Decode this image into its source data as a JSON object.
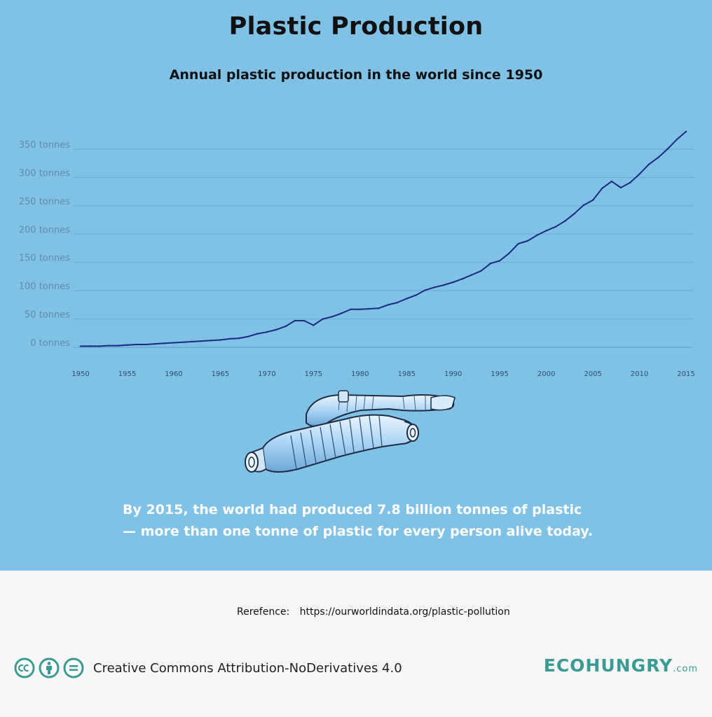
{
  "title": "Plastic Production",
  "subtitle": "Annual plastic production in the world since 1950",
  "caption": {
    "line1": "By 2015, the world had produced 7.8 billion tonnes of plastic",
    "line2": "— more than one tonne of plastic for every person alive today."
  },
  "reference": {
    "label": "Rerefence:",
    "url": "https://ourworldindata.org/plastic-pollution"
  },
  "license": {
    "text": "Creative Commons Attribution-NoDerivatives 4.0",
    "icons": [
      "cc-icon",
      "by-person-icon",
      "nd-equals-icon"
    ]
  },
  "brand": {
    "name": "ECOHUNGRY",
    "suffix": ".com"
  },
  "colors": {
    "background": "#80c1e6",
    "line": "#1a2a86",
    "brand": "#3a9a94",
    "footer": "#f7f7f7"
  },
  "chart_data": {
    "type": "line",
    "title": "Plastic Production",
    "subtitle": "Annual plastic production in the world since 1950",
    "xlabel": "",
    "ylabel": "",
    "ylim": [
      0,
      350
    ],
    "xlim": [
      1950,
      2015
    ],
    "grid": "horizontal",
    "yticks": [
      {
        "value": 0,
        "label": "0 tonnes"
      },
      {
        "value": 50,
        "label": "50 tonnes"
      },
      {
        "value": 100,
        "label": "100 tonnes"
      },
      {
        "value": 150,
        "label": "150 tonnes"
      },
      {
        "value": 200,
        "label": "200 tonnes"
      },
      {
        "value": 250,
        "label": "250 tonnes"
      },
      {
        "value": 300,
        "label": "300 tonnes"
      },
      {
        "value": 350,
        "label": "350 tonnes"
      }
    ],
    "xticks": [
      {
        "value": 1950,
        "label": "1950"
      },
      {
        "value": 1955,
        "label": "1955"
      },
      {
        "value": 1960,
        "label": "1960"
      },
      {
        "value": 1965,
        "label": "1965"
      },
      {
        "value": 1970,
        "label": "1970"
      },
      {
        "value": 1975,
        "label": "1975"
      },
      {
        "value": 1980,
        "label": "1980"
      },
      {
        "value": 1985,
        "label": "1985"
      },
      {
        "value": 1990,
        "label": "1990"
      },
      {
        "value": 1995,
        "label": "1995"
      },
      {
        "value": 2000,
        "label": "2000"
      },
      {
        "value": 2005,
        "label": "2005"
      },
      {
        "value": 2010,
        "label": "2010"
      },
      {
        "value": 2015,
        "label": "2015"
      }
    ],
    "series": [
      {
        "x": [
          1950,
          1951,
          1952,
          1953,
          1954,
          1955,
          1956,
          1957,
          1958,
          1959,
          1960,
          1961,
          1962,
          1963,
          1964,
          1965,
          1966,
          1967,
          1968,
          1969,
          1970,
          1971,
          1972,
          1973,
          1974,
          1975,
          1976,
          1977,
          1978,
          1979,
          1980,
          1981,
          1982,
          1983,
          1984,
          1985,
          1986,
          1987,
          1988,
          1989,
          1990,
          1991,
          1992,
          1993,
          1994,
          1995,
          1996,
          1997,
          1998,
          1999,
          2000,
          2001,
          2002,
          2003,
          2004,
          2005,
          2006,
          2007,
          2008,
          2009,
          2010,
          2011,
          2012,
          2013,
          2014,
          2015
        ],
        "values": [
          2,
          2,
          2,
          3,
          3,
          4,
          5,
          5,
          6,
          7,
          8,
          9,
          10,
          11,
          12,
          13,
          15,
          16,
          19,
          24,
          27,
          31,
          37,
          47,
          47,
          39,
          50,
          54,
          60,
          67,
          67,
          68,
          69,
          75,
          79,
          86,
          92,
          101,
          106,
          110,
          115,
          121,
          128,
          135,
          148,
          153,
          166,
          183,
          188,
          198,
          206,
          213,
          223,
          236,
          251,
          260,
          281,
          293,
          282,
          291,
          306,
          323,
          335,
          350,
          367,
          381
        ]
      }
    ]
  }
}
